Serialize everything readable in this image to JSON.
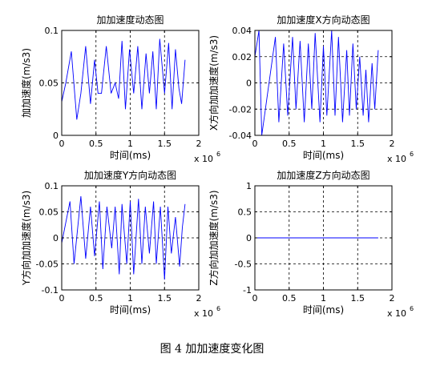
{
  "figure": {
    "caption": "图 4  加加速度变化图"
  },
  "chart_data": [
    {
      "type": "line",
      "title": "加加速度动态图",
      "xlabel": "时间(ms)",
      "ylabel": "加加速度(m/s3)",
      "x_exponent": "x 10",
      "x_exponent_power": "6",
      "xlim": [
        0,
        2
      ],
      "ylim": [
        0,
        0.1
      ],
      "xticks": [
        "0",
        "0.5",
        "1",
        "1.5",
        "2"
      ],
      "yticks": [
        "0",
        "0.05",
        "0.1"
      ],
      "grid": true,
      "line_color": "#0000ff",
      "x": [
        0,
        0.06,
        0.14,
        0.22,
        0.28,
        0.35,
        0.42,
        0.48,
        0.53,
        0.58,
        0.65,
        0.72,
        0.78,
        0.83,
        0.88,
        0.93,
        0.99,
        1.05,
        1.11,
        1.17,
        1.23,
        1.28,
        1.33,
        1.38,
        1.43,
        1.5,
        1.56,
        1.61,
        1.66,
        1.71,
        1.75,
        1.8
      ],
      "y": [
        0.032,
        0.05,
        0.08,
        0.015,
        0.04,
        0.085,
        0.03,
        0.072,
        0.04,
        0.04,
        0.085,
        0.04,
        0.05,
        0.035,
        0.09,
        0.025,
        0.082,
        0.04,
        0.085,
        0.025,
        0.078,
        0.04,
        0.08,
        0.025,
        0.092,
        0.04,
        0.088,
        0.025,
        0.082,
        0.045,
        0.03,
        0.072
      ]
    },
    {
      "type": "line",
      "title": "加加速度X方向动态图",
      "xlabel": "时间(ms)",
      "ylabel": "X方向加加速度(m/s3)",
      "x_exponent": "x 10",
      "x_exponent_power": "6",
      "xlim": [
        0,
        2
      ],
      "ylim": [
        -0.04,
        0.04
      ],
      "xticks": [
        "0",
        "0.5",
        "1",
        "1.5",
        "2"
      ],
      "yticks": [
        "-0.04",
        "-0.02",
        "0",
        "0.02",
        "0.04"
      ],
      "grid": true,
      "line_color": "#0000ff",
      "x": [
        0,
        0.06,
        0.1,
        0.3,
        0.35,
        0.42,
        0.48,
        0.55,
        0.6,
        0.66,
        0.72,
        0.78,
        0.83,
        0.88,
        0.95,
        1.0,
        1.05,
        1.12,
        1.17,
        1.22,
        1.28,
        1.34,
        1.38,
        1.43,
        1.48,
        1.53,
        1.58,
        1.62,
        1.66,
        1.71,
        1.75,
        1.8
      ],
      "y": [
        0.02,
        0.04,
        -0.04,
        0.035,
        -0.03,
        0.03,
        -0.025,
        0.035,
        -0.02,
        0.032,
        -0.03,
        0.03,
        -0.02,
        0.038,
        -0.03,
        0.028,
        -0.025,
        0.04,
        -0.025,
        0.035,
        -0.03,
        0.025,
        -0.025,
        0.03,
        -0.02,
        0.02,
        -0.025,
        0.01,
        -0.03,
        0.015,
        -0.02,
        0.025
      ]
    },
    {
      "type": "line",
      "title": "加加速度Y方向动态图",
      "xlabel": "时间(ms)",
      "ylabel": "Y方向加加速度(m/s3)",
      "x_exponent": "x 10",
      "x_exponent_power": "6",
      "xlim": [
        0,
        2
      ],
      "ylim": [
        -0.1,
        0.1
      ],
      "xticks": [
        "0",
        "0.5",
        "1",
        "1.5",
        "2"
      ],
      "yticks": [
        "-0.1",
        "-0.05",
        "0",
        "0.05",
        "0.1"
      ],
      "grid": true,
      "line_color": "#0000ff",
      "x": [
        0,
        0.12,
        0.18,
        0.28,
        0.35,
        0.42,
        0.48,
        0.55,
        0.6,
        0.66,
        0.73,
        0.78,
        0.84,
        0.88,
        0.95,
        1.0,
        1.05,
        1.12,
        1.17,
        1.22,
        1.28,
        1.34,
        1.38,
        1.44,
        1.5,
        1.55,
        1.6,
        1.66,
        1.72,
        1.76,
        1.8
      ],
      "y": [
        -0.01,
        0.07,
        -0.05,
        0.08,
        -0.04,
        0.06,
        -0.035,
        0.07,
        -0.06,
        0.06,
        -0.02,
        0.06,
        -0.07,
        0.065,
        -0.05,
        0.07,
        -0.07,
        0.075,
        -0.05,
        0.06,
        -0.03,
        0.07,
        -0.05,
        0.06,
        -0.08,
        0.06,
        -0.03,
        0.04,
        -0.055,
        0.02,
        0.065
      ]
    },
    {
      "type": "line",
      "title": "加加速度Z方向动态图",
      "xlabel": "时间(ms)",
      "ylabel": "Z方向加加速度(m/s3)",
      "x_exponent": "x 10",
      "x_exponent_power": "6",
      "xlim": [
        0,
        2
      ],
      "ylim": [
        -1,
        1
      ],
      "xticks": [
        "0",
        "0.5",
        "1",
        "1.5",
        "2"
      ],
      "yticks": [
        "-1",
        "-0.5",
        "0",
        "0.5",
        "1"
      ],
      "grid": true,
      "line_color": "#0000ff",
      "x": [
        0,
        1.8
      ],
      "y": [
        0,
        0
      ]
    }
  ]
}
